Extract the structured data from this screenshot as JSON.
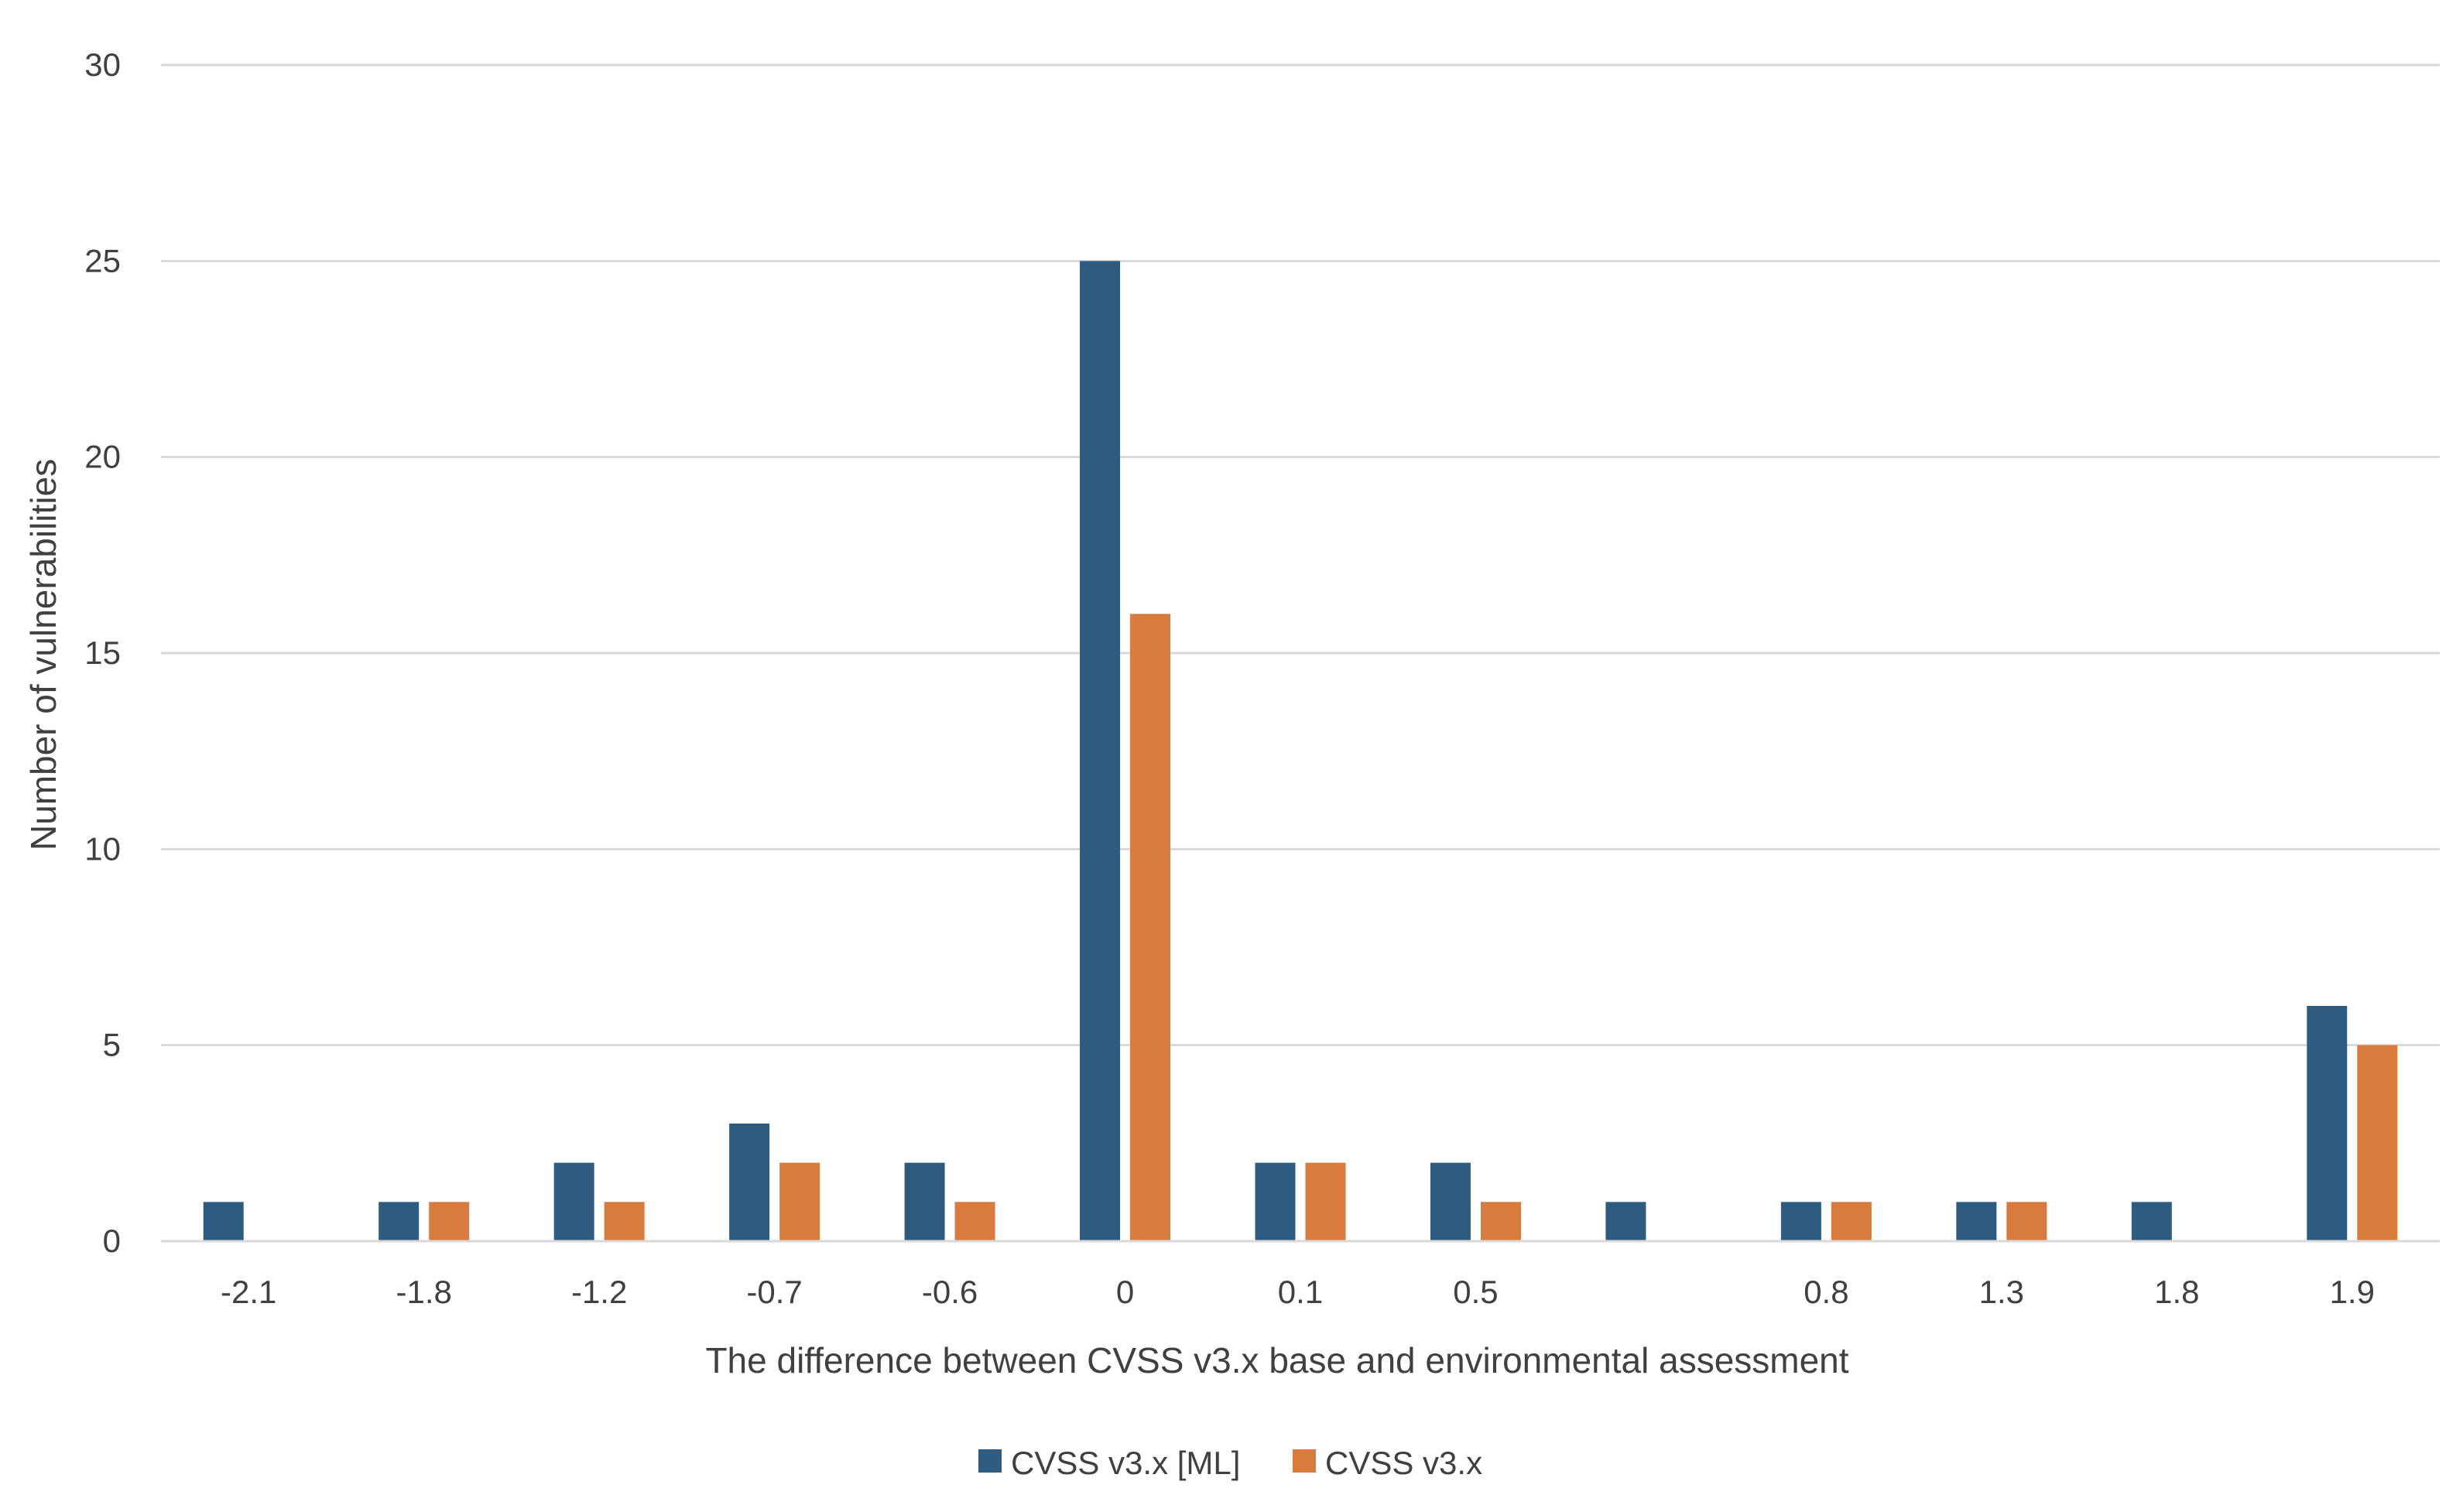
{
  "chart_data": {
    "type": "bar",
    "title": "",
    "xlabel": "The difference between CVSS v3.x base and environmental assessment",
    "ylabel": "Number of vulnerabilities",
    "ylim": [
      0,
      30
    ],
    "yticks": [
      "0",
      "5",
      "10",
      "15",
      "20",
      "25",
      "30"
    ],
    "grid": "horizontal",
    "legend_position": "bottom",
    "categories": [
      "-2.1",
      "-1.8",
      "-1.2",
      "-0.7",
      "-0.6",
      "0",
      "0.1",
      "0.5",
      "",
      "0.8",
      "1.3",
      "1.8",
      "1.9"
    ],
    "series": [
      {
        "name": "CVSS v3.x [ML]",
        "color": "#2e5c81",
        "values": [
          1,
          1,
          2,
          3,
          2,
          25,
          2,
          2,
          1,
          1,
          1,
          1,
          6
        ]
      },
      {
        "name": "CVSS v3.x",
        "color": "#d97a3f",
        "values": [
          0,
          1,
          1,
          2,
          1,
          16,
          2,
          1,
          0,
          1,
          1,
          0,
          5
        ]
      }
    ]
  }
}
